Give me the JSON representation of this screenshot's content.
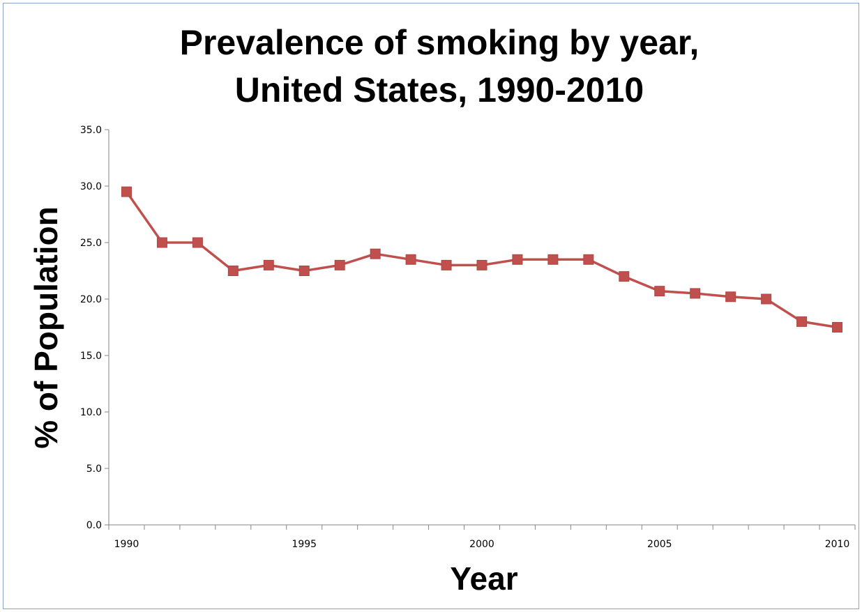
{
  "chart_data": {
    "type": "line",
    "title_line1": "Prevalence of smoking by year,",
    "title_line2": "United States, 1990-2010",
    "xlabel": "Year",
    "ylabel": "% of Population",
    "ylim": [
      0,
      35
    ],
    "yticks": [
      "0.0",
      "5.0",
      "10.0",
      "15.0",
      "20.0",
      "25.0",
      "30.0",
      "35.0"
    ],
    "xticks": [
      "1990",
      "1995",
      "2000",
      "2005",
      "2010"
    ],
    "grid": false,
    "legend": "none",
    "x": [
      1990,
      1991,
      1992,
      1993,
      1994,
      1995,
      1996,
      1997,
      1998,
      1999,
      2000,
      2001,
      2002,
      2003,
      2004,
      2005,
      2006,
      2007,
      2008,
      2009,
      2010
    ],
    "series": [
      {
        "values": [
          29.5,
          25.0,
          25.0,
          22.5,
          23.0,
          22.5,
          23.0,
          24.0,
          23.5,
          23.0,
          23.0,
          23.5,
          23.5,
          23.5,
          22.0,
          20.7,
          20.5,
          20.2,
          20.0,
          18.0,
          17.5
        ],
        "color": "#c0504d"
      }
    ]
  }
}
